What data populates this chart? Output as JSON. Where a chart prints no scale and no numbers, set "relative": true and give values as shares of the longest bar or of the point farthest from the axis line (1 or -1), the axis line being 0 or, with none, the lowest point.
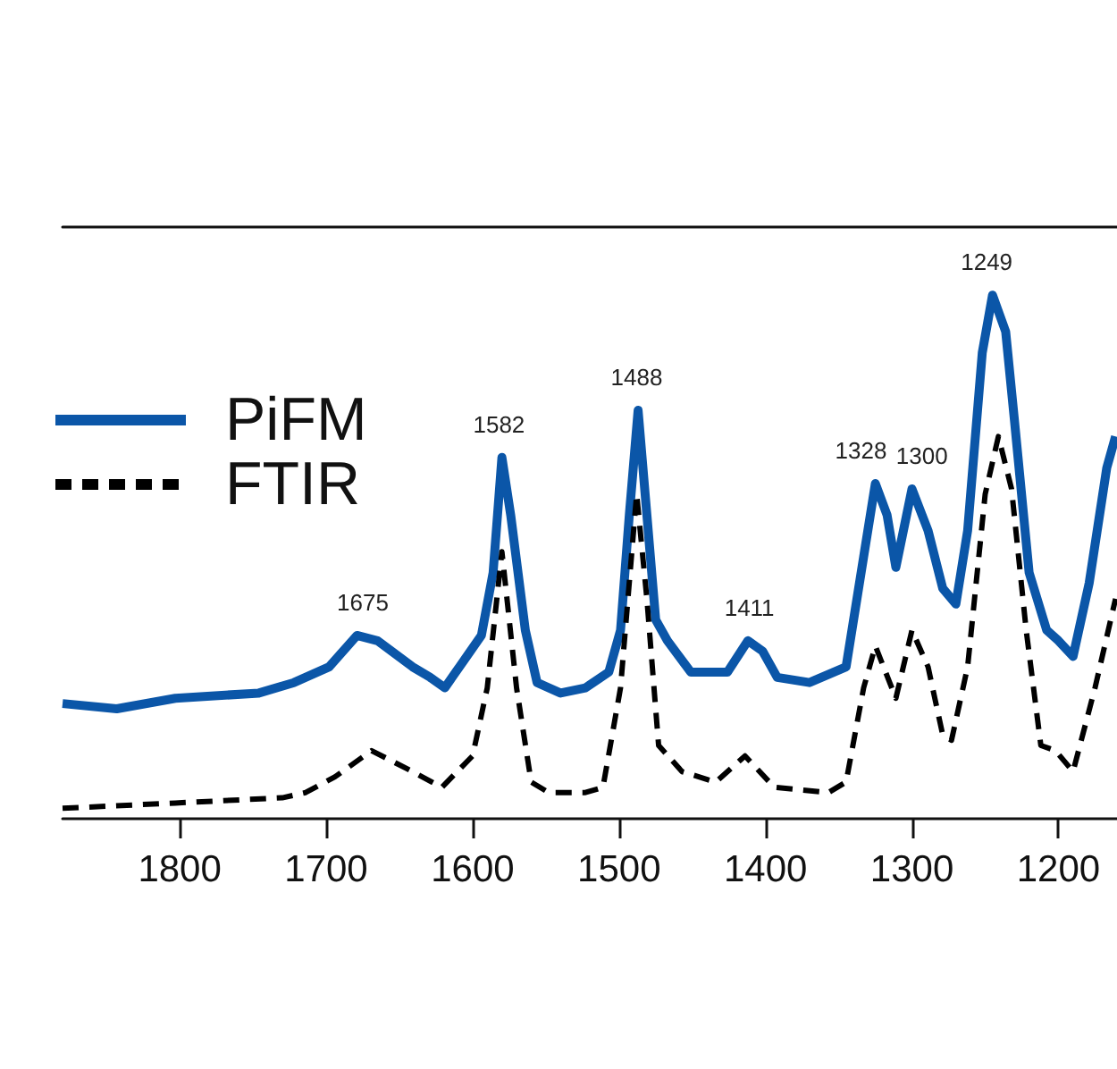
{
  "chart_data": {
    "type": "line",
    "relative": true,
    "xlim": [
      1880,
      1160
    ],
    "xticks": [
      1800,
      1700,
      1600,
      1500,
      1400,
      1300,
      1200
    ],
    "legend": "top left",
    "marker": "none",
    "series": [
      {
        "name": "PiFM",
        "color": "#0b56a8",
        "line_style": "solid",
        "x": [
          1880,
          1843,
          1803,
          1746,
          1722,
          1698,
          1679,
          1665,
          1641,
          1629,
          1619,
          1604,
          1594,
          1586,
          1580,
          1574,
          1564,
          1556,
          1540,
          1523,
          1507,
          1499,
          1493,
          1487,
          1481,
          1475,
          1467,
          1451,
          1426,
          1412,
          1402,
          1392,
          1370,
          1345,
          1333,
          1325,
          1317,
          1311,
          1300,
          1289,
          1279,
          1270,
          1262,
          1252,
          1245,
          1236,
          1230,
          1220,
          1208,
          1200,
          1190,
          1179,
          1167,
          1161
        ],
        "values": [
          0.22,
          0.21,
          0.23,
          0.24,
          0.26,
          0.29,
          0.35,
          0.34,
          0.29,
          0.27,
          0.25,
          0.31,
          0.35,
          0.47,
          0.69,
          0.58,
          0.36,
          0.26,
          0.24,
          0.25,
          0.28,
          0.36,
          0.58,
          0.78,
          0.58,
          0.38,
          0.34,
          0.28,
          0.28,
          0.34,
          0.32,
          0.27,
          0.26,
          0.29,
          0.5,
          0.64,
          0.58,
          0.48,
          0.63,
          0.55,
          0.44,
          0.41,
          0.55,
          0.89,
          1,
          0.93,
          0.76,
          0.47,
          0.36,
          0.34,
          0.31,
          0.45,
          0.67,
          0.73
        ]
      },
      {
        "name": "FTIR",
        "color": "#000000",
        "line_style": "dashed",
        "x": [
          1880,
          1803,
          1730,
          1714,
          1694,
          1669,
          1641,
          1621,
          1600,
          1590,
          1580,
          1570,
          1560,
          1548,
          1523,
          1511,
          1499,
          1488,
          1481,
          1473,
          1457,
          1434,
          1414,
          1394,
          1357,
          1345,
          1333,
          1325,
          1311,
          1300,
          1289,
          1279,
          1273,
          1262,
          1250,
          1241,
          1232,
          1222,
          1212,
          1202,
          1190,
          1175,
          1161
        ],
        "values": [
          0.02,
          0.03,
          0.04,
          0.05,
          0.08,
          0.13,
          0.09,
          0.06,
          0.12,
          0.25,
          0.51,
          0.25,
          0.07,
          0.05,
          0.05,
          0.06,
          0.25,
          0.62,
          0.42,
          0.14,
          0.09,
          0.07,
          0.12,
          0.06,
          0.05,
          0.07,
          0.25,
          0.33,
          0.23,
          0.36,
          0.29,
          0.16,
          0.15,
          0.29,
          0.62,
          0.73,
          0.63,
          0.36,
          0.14,
          0.13,
          0.09,
          0.25,
          0.42
        ]
      }
    ],
    "annotations": [
      {
        "text": "1675",
        "x": 1675,
        "y": 0.35
      },
      {
        "text": "1582",
        "x": 1582,
        "y": 0.69
      },
      {
        "text": "1488",
        "x": 1488,
        "y": 0.78
      },
      {
        "text": "1411",
        "x": 1411,
        "y": 0.34
      },
      {
        "text": "1328",
        "x": 1328,
        "y": 0.64
      },
      {
        "text": "1300",
        "x": 1300,
        "y": 0.63
      },
      {
        "text": "1249",
        "x": 1249,
        "y": 1
      }
    ]
  }
}
